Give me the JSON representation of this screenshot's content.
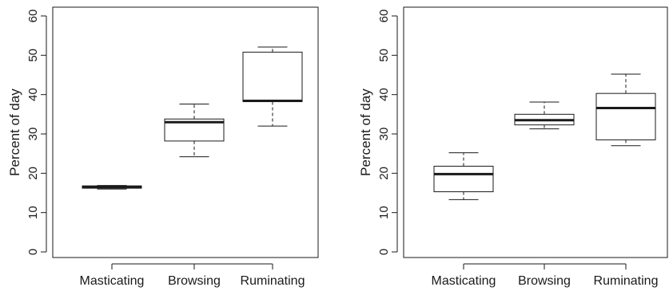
{
  "chart_data": [
    {
      "type": "box",
      "ylabel": "Percent of day",
      "ylim": [
        0,
        60
      ],
      "yticks": [
        0,
        10,
        20,
        30,
        40,
        50,
        60
      ],
      "categories": [
        "Masticating",
        "Browsing",
        "Ruminating"
      ],
      "boxes": [
        {
          "whisker_low": 16.0,
          "q1": 16.2,
          "median": 16.5,
          "q3": 16.8,
          "whisker_high": 16.9
        },
        {
          "whisker_low": 24.2,
          "q1": 28.2,
          "median": 33.0,
          "q3": 33.8,
          "whisker_high": 37.6
        },
        {
          "whisker_low": 32.0,
          "q1": 38.2,
          "median": 38.4,
          "q3": 50.8,
          "whisker_high": 52.1
        }
      ]
    },
    {
      "type": "box",
      "ylabel": "Percent of day",
      "ylim": [
        0,
        60
      ],
      "yticks": [
        0,
        10,
        20,
        30,
        40,
        50,
        60
      ],
      "categories": [
        "Masticating",
        "Browsing",
        "Ruminating"
      ],
      "boxes": [
        {
          "whisker_low": 13.3,
          "q1": 15.3,
          "median": 19.8,
          "q3": 21.8,
          "whisker_high": 25.2
        },
        {
          "whisker_low": 31.3,
          "q1": 32.3,
          "median": 33.5,
          "q3": 35.0,
          "whisker_high": 38.1
        },
        {
          "whisker_low": 27.0,
          "q1": 28.5,
          "median": 36.6,
          "q3": 40.3,
          "whisker_high": 45.2
        }
      ]
    }
  ]
}
